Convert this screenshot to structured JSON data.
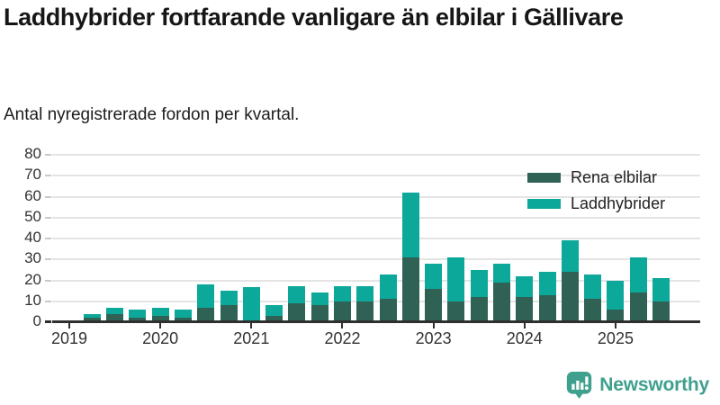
{
  "header": {
    "title": "Laddhybrider fortfarande vanligare än elbilar i Gällivare",
    "subtitle": "Antal nyregistrerade fordon per kvartal."
  },
  "colors": {
    "rena_elbilar": "#2f6155",
    "laddhybrider": "#0ca89a",
    "brand": "#3fa08e",
    "axis": "#2f2f2f",
    "grid": "#e4e4e4"
  },
  "chart_data": {
    "type": "bar",
    "stacked": true,
    "title": "Laddhybrider fortfarande vanligare än elbilar i Gällivare",
    "subtitle": "Antal nyregistrerade fordon per kvartal.",
    "categories": [
      "2019 Q1",
      "2019 Q2",
      "2019 Q3",
      "2019 Q4",
      "2020 Q1",
      "2020 Q2",
      "2020 Q3",
      "2020 Q4",
      "2021 Q1",
      "2021 Q2",
      "2021 Q3",
      "2021 Q4",
      "2022 Q1",
      "2022 Q2",
      "2022 Q3",
      "2022 Q4",
      "2023 Q1",
      "2023 Q2",
      "2023 Q3",
      "2023 Q4",
      "2024 Q1",
      "2024 Q2",
      "2024 Q3",
      "2024 Q4",
      "2025 Q1",
      "2025 Q2",
      "2025 Q3"
    ],
    "series": [
      {
        "name": "Rena elbilar",
        "color": "#2f6155",
        "values": [
          0,
          2,
          4,
          2,
          3,
          2,
          7,
          8,
          1,
          3,
          9,
          8,
          10,
          10,
          11,
          31,
          16,
          10,
          12,
          19,
          12,
          13,
          24,
          11,
          6,
          14,
          10
        ]
      },
      {
        "name": "Laddhybrider",
        "color": "#0ca89a",
        "values": [
          0,
          2,
          3,
          4,
          4,
          4,
          11,
          7,
          16,
          5,
          8,
          6,
          7,
          7,
          12,
          31,
          12,
          21,
          13,
          9,
          10,
          11,
          15,
          12,
          14,
          17,
          11
        ]
      }
    ],
    "totals": [
      0,
      4,
      7,
      6,
      7,
      6,
      18,
      15,
      17,
      8,
      17,
      14,
      17,
      17,
      23,
      62,
      28,
      31,
      25,
      28,
      22,
      24,
      39,
      23,
      20,
      31,
      21
    ],
    "xlabel": "",
    "ylabel": "",
    "ylim": [
      0,
      80
    ],
    "yticks": [
      0,
      10,
      20,
      30,
      40,
      50,
      60,
      70,
      80
    ],
    "xticks": [
      "2019",
      "2020",
      "2021",
      "2022",
      "2023",
      "2024",
      "2025"
    ],
    "grid": "horizontal",
    "legend_position": "top-right"
  },
  "footer": {
    "brand": "Newsworthy"
  }
}
